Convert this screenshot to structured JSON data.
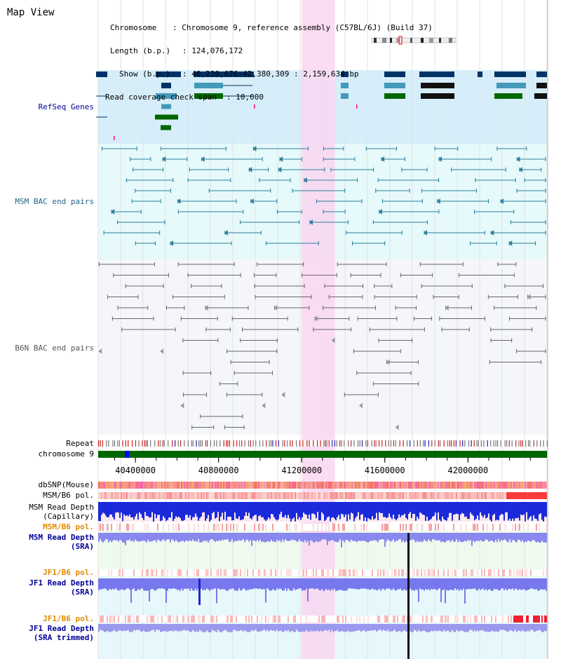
{
  "title": "Map View",
  "header": {
    "chromosome_key": "Chromosome",
    "chromosome_val": "Chromosome 9, reference assembly (C57BL/6J) (Build 37)",
    "length_key": "Length (b.p.)",
    "length_val": "124,076,172",
    "show_key": "Show (b.p.)",
    "show_val": "40,220,676-42,380,309 : 2,159,634 bp",
    "span_key": "Read coverage check span",
    "span_val": "10,000"
  },
  "tracks": {
    "refseq": "RefSeq Genes",
    "msm_bac": "MSM BAC end pairs",
    "b6n_bac": "B6N BAC end pairs",
    "repeat": "Repeat",
    "chrom": "chromosome 9",
    "dbsnp": "dbSNP(Mouse)",
    "msm_pol": "MSM/B6 pol.",
    "msm_depth_cap_1": "MSM Read Depth",
    "msm_depth_cap_2": "(Capillary)",
    "msm_pol_2": "MSM/B6 pol.",
    "msm_depth_sra_1": "MSM Read Depth",
    "msm_depth_sra_2": "(SRA)",
    "jf1_pol": "JF1/B6 pol.",
    "jf1_depth_1": "JF1 Read Depth",
    "jf1_depth_2": "(SRA)",
    "jf1_pol_2": "JF1/B6 pol.",
    "jf1_trim_1": "JF1 Read Depth",
    "jf1_trim_2": "(SRA trimmed)"
  },
  "chart_data": {
    "type": "other",
    "x": [
      40400000,
      40800000,
      41200000,
      41600000,
      42000000
    ],
    "tick_labels": [
      "40400000",
      "40800000",
      "41200000",
      "41600000",
      "42000000"
    ],
    "view_range": [
      40220676,
      42380309
    ],
    "highlight_range": [
      41200000,
      41360000
    ],
    "colors": {
      "refseq_bg": "#d6eef9",
      "bac_bg": "#e6f9fb",
      "b6n_bg": "#f4f6f9",
      "highlight": "#f9d6f1",
      "gene_dark": "#003366",
      "gene_mid": "#4499bb",
      "gene_green": "#006600",
      "bac_msm": "#2b7f9b",
      "bac_b6n": "#666666",
      "depth_cap": "#1a2adb",
      "depth_sra": "#8888ee",
      "label_blue": "#000099",
      "label_orange": "#e08a00"
    }
  }
}
